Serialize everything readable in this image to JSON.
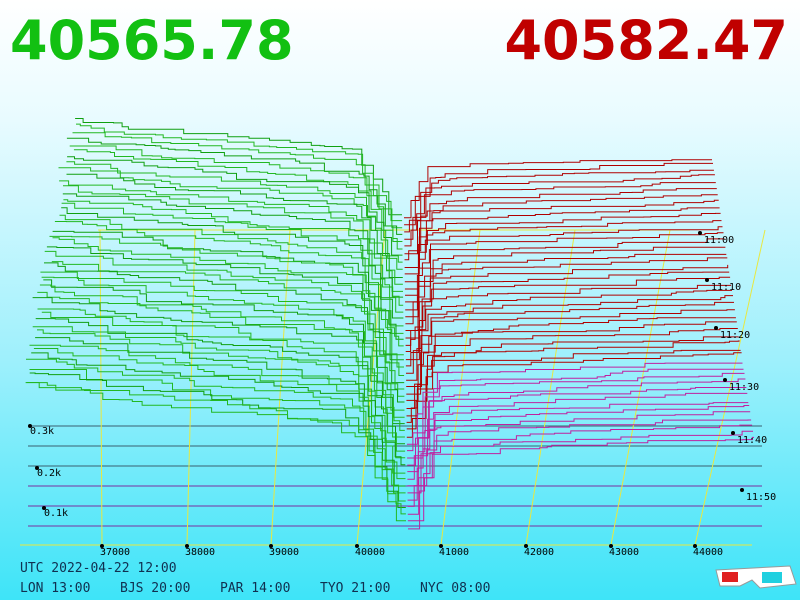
{
  "header": {
    "bid": "40565.78",
    "ask": "40582.47"
  },
  "price_axis": {
    "labels": [
      "37000",
      "38000",
      "39000",
      "40000",
      "41000",
      "42000",
      "43000",
      "44000"
    ]
  },
  "depth_axis": {
    "labels": [
      "0.3k",
      "0.2k",
      "0.1k"
    ]
  },
  "time_axis": {
    "labels": [
      "11:00",
      "11:10",
      "11:20",
      "11:30",
      "11:40",
      "11:50"
    ]
  },
  "footer": {
    "utc": "UTC 2022-04-22 12:00",
    "zones": [
      "LON 13:00",
      "BJS 20:00",
      "PAR 14:00",
      "TYO 21:00",
      "NYC 08:00"
    ]
  }
}
